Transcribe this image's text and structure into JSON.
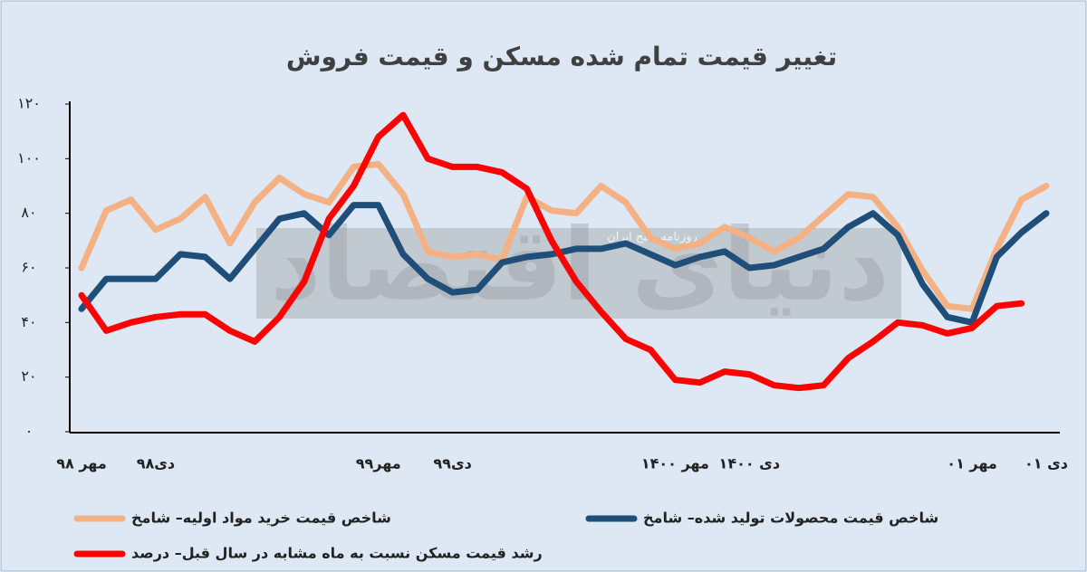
{
  "chart_data": {
    "type": "line",
    "title": "تغییر قیمت تمام شده مسکن و قیمت فروش",
    "watermark": [
      "دنیای اقتصاد",
      "روزنامه صبح ایران"
    ],
    "categories": [
      "مهر ۹۸",
      null,
      null,
      "دی۹۸",
      null,
      null,
      null,
      null,
      null,
      null,
      null,
      null,
      "مهر۹۹",
      null,
      null,
      "دی۹۹",
      null,
      null,
      null,
      null,
      null,
      null,
      null,
      null,
      "مهر ۱۴۰۰",
      null,
      null,
      "دی ۱۴۰۰",
      null,
      null,
      null,
      null,
      null,
      null,
      null,
      null,
      "مهر ۰۱",
      null,
      null,
      "دی ۰۱"
    ],
    "series": [
      {
        "name": "شاخص قیمت خرید مواد اولیه– شامخ",
        "color": "#f4b183",
        "values": [
          60,
          81,
          85,
          74,
          78,
          86,
          69,
          84,
          93,
          87,
          84,
          97,
          98,
          87,
          66,
          64,
          65,
          63,
          86,
          81,
          80,
          90,
          84,
          71,
          67,
          69,
          75,
          71,
          66,
          71,
          79,
          87,
          86,
          75,
          59,
          46,
          45,
          67,
          85,
          90
        ]
      },
      {
        "name": "شاخص قیمت محصولات تولید شده– شامخ",
        "color": "#1f4e79",
        "values": [
          45,
          56,
          56,
          56,
          65,
          64,
          56,
          67,
          78,
          80,
          72,
          83,
          83,
          65,
          56,
          51,
          52,
          62,
          64,
          65,
          67,
          67,
          69,
          65,
          61,
          64,
          66,
          60,
          61,
          64,
          67,
          75,
          80,
          72,
          54,
          42,
          40,
          64,
          73,
          80
        ]
      },
      {
        "name": "رشد قیمت مسکن نسبت به ماه مشابه در سال قبل– درصد",
        "color": "#ff0000",
        "values": [
          50,
          37,
          40,
          42,
          43,
          43,
          37,
          33,
          42,
          55,
          78,
          90,
          108,
          116,
          100,
          97,
          97,
          95,
          89,
          70,
          55,
          44,
          34,
          30,
          19,
          18,
          22,
          21,
          17,
          16,
          17,
          27,
          33,
          40,
          39,
          36,
          38,
          46,
          47,
          null
        ]
      }
    ],
    "ylim": [
      0,
      120
    ],
    "yticks": [
      {
        "value": 0,
        "label": "۰"
      },
      {
        "value": 20,
        "label": "۲۰"
      },
      {
        "value": 40,
        "label": "۴۰"
      },
      {
        "value": 60,
        "label": "۶۰"
      },
      {
        "value": 80,
        "label": "۸۰"
      },
      {
        "value": 100,
        "label": "۱۰۰"
      },
      {
        "value": 120,
        "label": "۱۲۰"
      }
    ]
  }
}
